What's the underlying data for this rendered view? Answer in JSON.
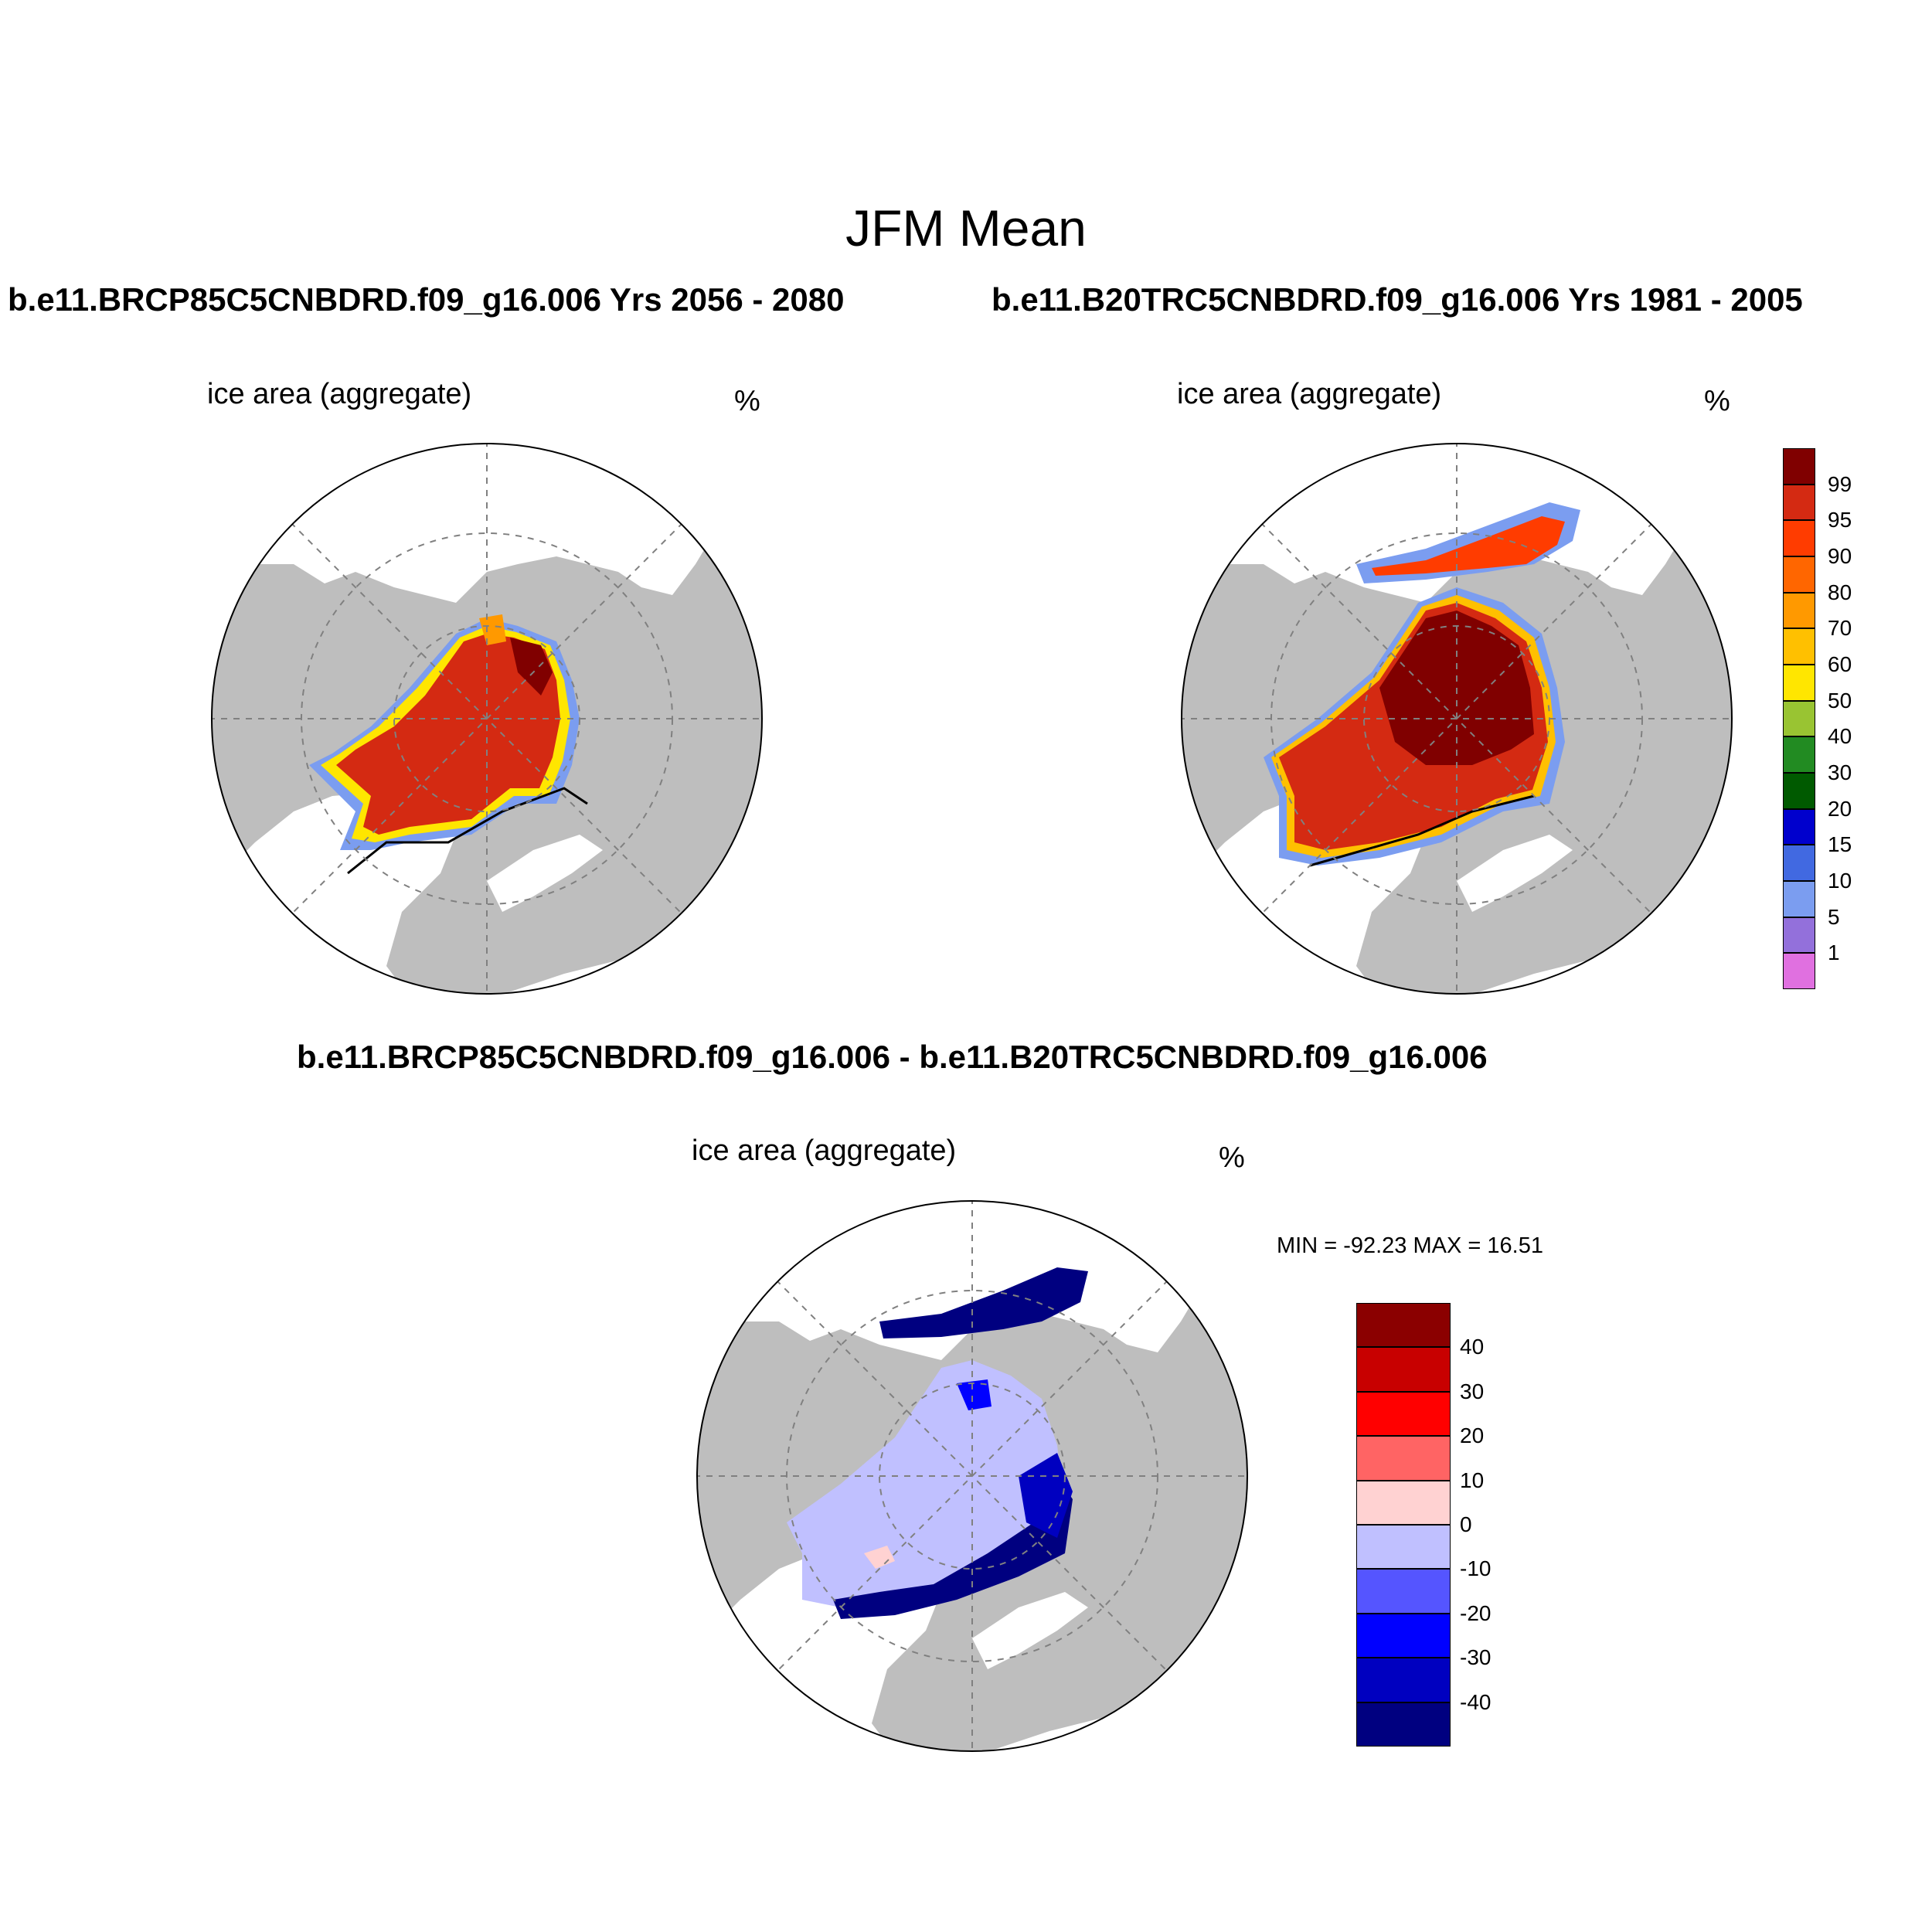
{
  "header": {
    "title": "JFM Mean",
    "left_case": "b.e11.BRCP85C5CNBDRD.f09_g16.006  Yrs 2056 - 2080",
    "right_case": "b.e11.B20TRC5CNBDRD.f09_g16.006  Yrs 1981 - 2005",
    "diff_case": "b.e11.BRCP85C5CNBDRD.f09_g16.006 - b.e11.B20TRC5CNBDRD.f09_g16.006"
  },
  "panels": {
    "left": {
      "variable": "ice area  (aggregate)",
      "units": "%"
    },
    "right": {
      "variable": "ice area  (aggregate)",
      "units": "%"
    },
    "diff": {
      "variable": "ice area  (aggregate)",
      "units": "%",
      "minmax": "MIN = -92.23 MAX =  16.51"
    }
  },
  "colorbars": {
    "ice": {
      "labels": [
        "99",
        "95",
        "90",
        "80",
        "70",
        "60",
        "50",
        "40",
        "30",
        "20",
        "15",
        "10",
        "5",
        "1"
      ],
      "colors": [
        "#800000",
        "#d42a12",
        "#ff3c00",
        "#ff6600",
        "#ff9900",
        "#ffc000",
        "#ffe600",
        "#99c432",
        "#228b22",
        "#005a00",
        "#0000cd",
        "#4169e1",
        "#7b9df0",
        "#9370db",
        "#e070e0"
      ]
    },
    "diff": {
      "labels": [
        "40",
        "30",
        "20",
        "10",
        "0",
        "-10",
        "-20",
        "-30",
        "-40"
      ],
      "colors": [
        "#8b0000",
        "#c80000",
        "#ff0000",
        "#ff6464",
        "#ffd2d2",
        "#c0c0ff",
        "#5555ff",
        "#0000ff",
        "#0000c0",
        "#000080"
      ]
    }
  },
  "colors": {
    "land": "#bebebe",
    "ocean": "#ffffff",
    "grid": "#808080"
  }
}
